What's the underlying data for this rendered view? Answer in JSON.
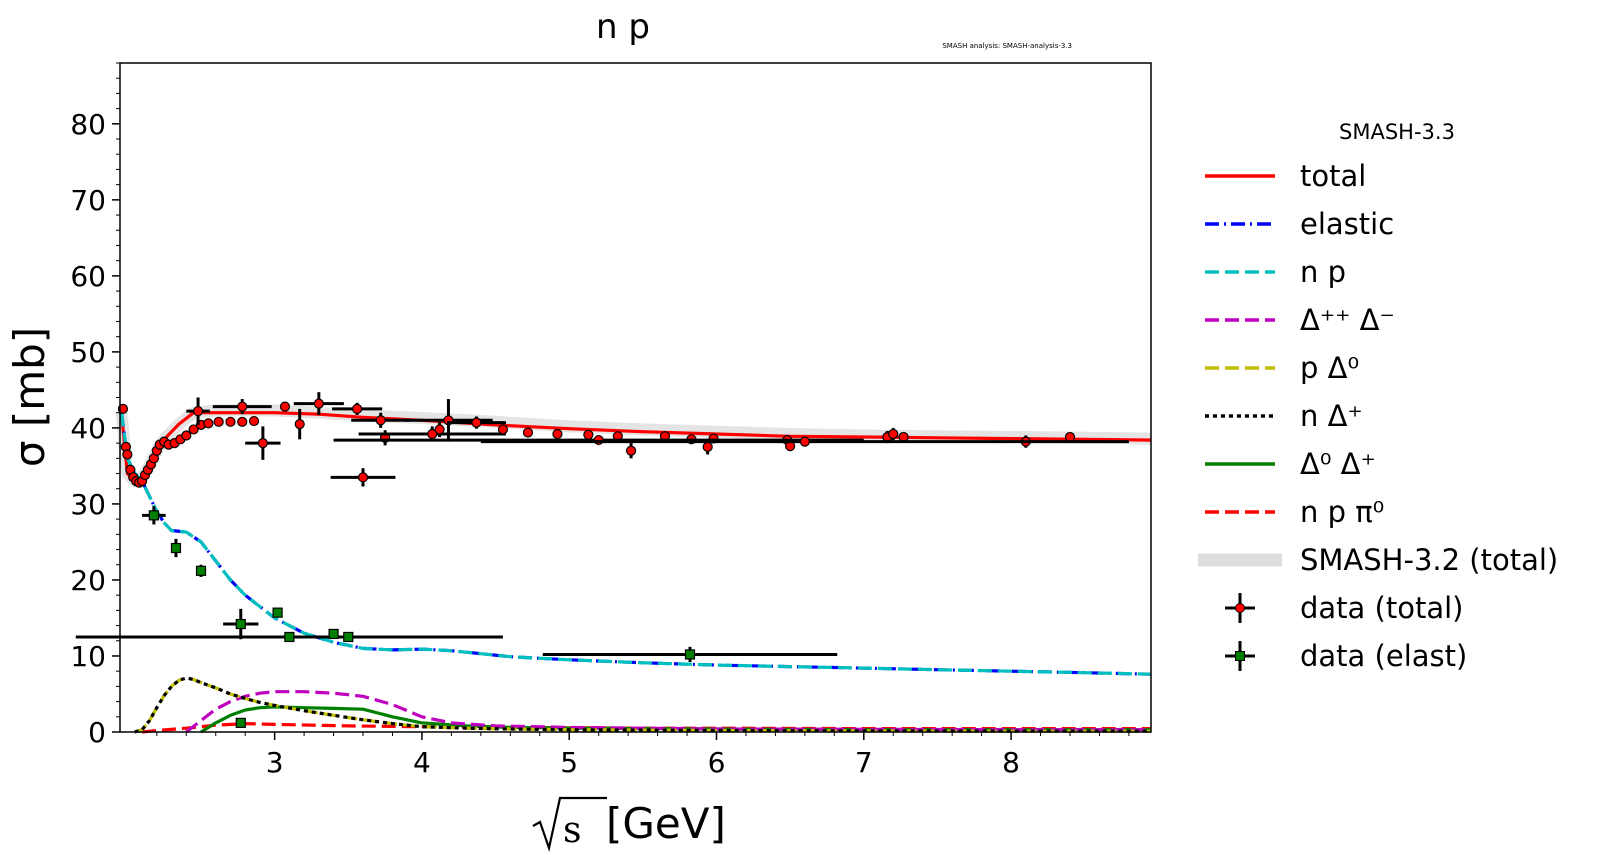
{
  "chart_data": {
    "type": "line",
    "title": "n p",
    "subtitle": "SMASH analysis: SMASH-analysis-3.3",
    "xlabel": "[GeV]",
    "xlabel_symbol": "√s",
    "ylabel": "σ [mb]",
    "xlim": [
      1.95,
      8.95
    ],
    "ylim": [
      0,
      88
    ],
    "xticks": [
      3,
      4,
      5,
      6,
      7,
      8
    ],
    "yticks": [
      0,
      10,
      20,
      30,
      40,
      50,
      60,
      70,
      80
    ],
    "grid": false,
    "legend_title": "SMASH-3.3",
    "legend_position": "right outside",
    "series": [
      {
        "name": "total",
        "color": "#ff0000",
        "style": "solid",
        "x": [
          1.96,
          1.98,
          2.0,
          2.05,
          2.1,
          2.15,
          2.2,
          2.25,
          2.35,
          2.45,
          2.6,
          2.8,
          3.0,
          3.3,
          3.6,
          4.0,
          4.5,
          5.0,
          5.5,
          6.0,
          6.5,
          7.0,
          7.5,
          8.0,
          8.5,
          8.95
        ],
        "y": [
          42,
          38,
          34,
          33,
          33.5,
          35,
          37,
          38.5,
          40.5,
          42,
          42,
          42,
          42,
          41.8,
          41.4,
          41,
          40.4,
          39.9,
          39.5,
          39.2,
          38.9,
          38.8,
          38.7,
          38.6,
          38.5,
          38.4
        ]
      },
      {
        "name": "elastic",
        "color": "#0000ff",
        "style": "dashdot",
        "x": [
          1.96,
          2.0,
          2.05,
          2.1,
          2.15,
          2.2,
          2.25,
          2.3,
          2.4,
          2.5,
          2.6,
          2.7,
          2.8,
          2.9,
          3.0,
          3.2,
          3.4,
          3.6,
          3.8,
          4.0,
          4.2,
          4.4,
          4.6,
          5.0,
          5.5,
          6.0,
          6.5,
          7.0,
          7.5,
          8.0,
          8.5,
          8.95
        ],
        "y": [
          42,
          36,
          34,
          33,
          31,
          29,
          27.5,
          26.5,
          26.3,
          25,
          22.5,
          20,
          18,
          16.5,
          15,
          13,
          11.8,
          11,
          10.8,
          10.9,
          10.7,
          10.3,
          9.9,
          9.5,
          9.1,
          8.8,
          8.6,
          8.4,
          8.2,
          8.0,
          7.8,
          7.6
        ]
      },
      {
        "name": "n p",
        "color": "#00bfbf",
        "style": "dashed",
        "x": [
          1.96,
          2.0,
          2.05,
          2.1,
          2.15,
          2.2,
          2.25,
          2.3,
          2.4,
          2.5,
          2.6,
          2.7,
          2.8,
          2.9,
          3.0,
          3.2,
          3.4,
          3.6,
          3.8,
          4.0,
          4.2,
          4.4,
          4.6,
          5.0,
          5.5,
          6.0,
          6.5,
          7.0,
          7.5,
          8.0,
          8.5,
          8.95
        ],
        "y": [
          42,
          36,
          34,
          33,
          31,
          29,
          27.5,
          26.5,
          26.3,
          25,
          22.5,
          20,
          18,
          16.5,
          15,
          13,
          11.8,
          11,
          10.8,
          10.9,
          10.7,
          10.3,
          9.9,
          9.5,
          9.1,
          8.8,
          8.6,
          8.4,
          8.2,
          8.0,
          7.8,
          7.6
        ]
      },
      {
        "name": "Δ⁺⁺ Δ⁻",
        "color": "#bf00bf",
        "style": "dashed",
        "x": [
          2.4,
          2.5,
          2.6,
          2.7,
          2.8,
          2.9,
          3.0,
          3.2,
          3.4,
          3.6,
          3.8,
          4.0,
          4.2,
          4.5,
          5.0,
          6.0,
          7.0,
          8.0,
          8.95
        ],
        "y": [
          0,
          1.5,
          3.0,
          4.0,
          4.7,
          5.1,
          5.3,
          5.3,
          5.1,
          4.7,
          3.6,
          2.0,
          1.2,
          0.8,
          0.6,
          0.4,
          0.35,
          0.3,
          0.3
        ]
      },
      {
        "name": "p Δ⁰",
        "color": "#bfbf00",
        "style": "dashed",
        "x": [
          2.05,
          2.1,
          2.15,
          2.2,
          2.25,
          2.3,
          2.35,
          2.4,
          2.45,
          2.5,
          2.6,
          2.7,
          2.8,
          2.9,
          3.0,
          3.2,
          3.4,
          3.6,
          3.8,
          4.0,
          4.3,
          4.6,
          5.0,
          6.0,
          7.0,
          8.0,
          8.95
        ],
        "y": [
          0,
          0.3,
          1.5,
          3.2,
          4.8,
          6.0,
          6.8,
          7.1,
          6.9,
          6.5,
          5.8,
          5.0,
          4.4,
          3.9,
          3.5,
          2.8,
          2.2,
          1.6,
          1.1,
          0.7,
          0.5,
          0.4,
          0.3,
          0.2,
          0.15,
          0.1,
          0.1
        ]
      },
      {
        "name": "n Δ⁺",
        "color": "#000000",
        "style": "dotted",
        "x": [
          2.05,
          2.1,
          2.15,
          2.2,
          2.25,
          2.3,
          2.35,
          2.4,
          2.45,
          2.5,
          2.6,
          2.7,
          2.8,
          2.9,
          3.0,
          3.2,
          3.4,
          3.6,
          3.8,
          4.0,
          4.3,
          4.6,
          5.0,
          6.0,
          7.0,
          8.0,
          8.95
        ],
        "y": [
          0,
          0.3,
          1.5,
          3.2,
          4.8,
          6.0,
          6.8,
          7.1,
          6.9,
          6.5,
          5.8,
          5.0,
          4.4,
          3.9,
          3.5,
          2.8,
          2.2,
          1.6,
          1.1,
          0.7,
          0.5,
          0.4,
          0.3,
          0.2,
          0.15,
          0.1,
          0.1
        ]
      },
      {
        "name": "Δ⁰ Δ⁺",
        "color": "#008000",
        "style": "solid",
        "x": [
          2.5,
          2.6,
          2.7,
          2.8,
          2.9,
          3.0,
          3.2,
          3.4,
          3.6,
          3.8,
          4.0,
          4.3,
          4.6,
          5.0,
          6.0,
          7.0,
          8.0,
          8.95
        ],
        "y": [
          0,
          1.2,
          2.2,
          2.9,
          3.2,
          3.3,
          3.2,
          3.1,
          3.0,
          2.0,
          1.2,
          0.8,
          0.6,
          0.5,
          0.4,
          0.3,
          0.3,
          0.3
        ]
      },
      {
        "name": "n p π⁰",
        "color": "#ff0000",
        "style": "dashed",
        "x": [
          2.1,
          2.2,
          2.4,
          2.6,
          2.8,
          3.0,
          3.5,
          4.0,
          4.5,
          5.0,
          5.5,
          6.0,
          7.0,
          8.0,
          8.95
        ],
        "y": [
          0,
          0.2,
          0.5,
          0.9,
          1.1,
          1.0,
          0.8,
          0.7,
          0.6,
          0.55,
          0.5,
          0.5,
          0.45,
          0.45,
          0.45
        ]
      },
      {
        "name": "SMASH-3.2 (total)",
        "color": "#dddddd",
        "style": "band",
        "x": [
          1.96,
          1.98,
          2.0,
          2.05,
          2.1,
          2.15,
          2.2,
          2.25,
          2.35,
          2.45,
          2.6,
          2.8,
          3.0,
          3.3,
          3.6,
          4.0,
          4.5,
          5.0,
          5.5,
          6.0,
          6.5,
          7.0,
          7.5,
          8.0,
          8.5,
          8.95
        ],
        "y": [
          42,
          38,
          34,
          33,
          33.5,
          35,
          37,
          38.5,
          40.5,
          42,
          42.3,
          42.3,
          42.3,
          42,
          41.6,
          41.3,
          40.8,
          40.2,
          39.8,
          39.5,
          39.2,
          39.0,
          38.9,
          38.8,
          38.7,
          38.6
        ]
      }
    ],
    "data_total": {
      "name": "data (total)",
      "color": "#ff0000",
      "points": [
        {
          "x": 1.97,
          "y": 42.5,
          "xerr": 0.0,
          "yerr": 0.5
        },
        {
          "x": 1.99,
          "y": 37.5,
          "xerr": 0.0,
          "yerr": 0.5
        },
        {
          "x": 2.0,
          "y": 36.5,
          "xerr": 0.0,
          "yerr": 0.5
        },
        {
          "x": 2.02,
          "y": 34.5,
          "xerr": 0.0,
          "yerr": 0.5
        },
        {
          "x": 2.04,
          "y": 33.5,
          "xerr": 0.0,
          "yerr": 0.5
        },
        {
          "x": 2.06,
          "y": 33.0,
          "xerr": 0.0,
          "yerr": 0.5
        },
        {
          "x": 2.08,
          "y": 32.8,
          "xerr": 0.0,
          "yerr": 0.5
        },
        {
          "x": 2.1,
          "y": 33.0,
          "xerr": 0.0,
          "yerr": 0.5
        },
        {
          "x": 2.12,
          "y": 33.8,
          "xerr": 0.0,
          "yerr": 0.5
        },
        {
          "x": 2.14,
          "y": 34.5,
          "xerr": 0.0,
          "yerr": 0.5
        },
        {
          "x": 2.16,
          "y": 35.2,
          "xerr": 0.0,
          "yerr": 0.5
        },
        {
          "x": 2.18,
          "y": 36.0,
          "xerr": 0.0,
          "yerr": 0.5
        },
        {
          "x": 2.2,
          "y": 37.0,
          "xerr": 0.0,
          "yerr": 0.5
        },
        {
          "x": 2.22,
          "y": 37.8,
          "xerr": 0.0,
          "yerr": 0.5
        },
        {
          "x": 2.25,
          "y": 38.2,
          "xerr": 0.0,
          "yerr": 0.5
        },
        {
          "x": 2.28,
          "y": 37.8,
          "xerr": 0.0,
          "yerr": 0.5
        },
        {
          "x": 2.32,
          "y": 38.0,
          "xerr": 0.0,
          "yerr": 0.5
        },
        {
          "x": 2.36,
          "y": 38.5,
          "xerr": 0.0,
          "yerr": 0.5
        },
        {
          "x": 2.4,
          "y": 39.0,
          "xerr": 0.0,
          "yerr": 0.5
        },
        {
          "x": 2.45,
          "y": 39.8,
          "xerr": 0.0,
          "yerr": 0.5
        },
        {
          "x": 2.5,
          "y": 40.4,
          "xerr": 0.0,
          "yerr": 0.5
        },
        {
          "x": 2.55,
          "y": 40.6,
          "xerr": 0.0,
          "yerr": 0.5
        },
        {
          "x": 2.62,
          "y": 40.8,
          "xerr": 0.0,
          "yerr": 0.5
        },
        {
          "x": 2.7,
          "y": 40.8,
          "xerr": 0.0,
          "yerr": 0.5
        },
        {
          "x": 2.78,
          "y": 40.8,
          "xerr": 0.0,
          "yerr": 0.5
        },
        {
          "x": 2.86,
          "y": 40.9,
          "xerr": 0.0,
          "yerr": 0.5
        },
        {
          "x": 2.48,
          "y": 42.2,
          "xerr": 0.08,
          "yerr": 1.8
        },
        {
          "x": 2.78,
          "y": 42.8,
          "xerr": 0.2,
          "yerr": 1.0
        },
        {
          "x": 2.92,
          "y": 38.0,
          "xerr": 0.12,
          "yerr": 2.2
        },
        {
          "x": 3.07,
          "y": 42.8,
          "xerr": 0.0,
          "yerr": 0.5
        },
        {
          "x": 3.17,
          "y": 40.5,
          "xerr": 0.0,
          "yerr": 2.0
        },
        {
          "x": 3.3,
          "y": 43.2,
          "xerr": 0.17,
          "yerr": 1.5
        },
        {
          "x": 3.56,
          "y": 42.5,
          "xerr": 0.17,
          "yerr": 0.8
        },
        {
          "x": 3.6,
          "y": 33.5,
          "xerr": 0.22,
          "yerr": 1.2
        },
        {
          "x": 3.72,
          "y": 41.0,
          "xerr": 0.2,
          "yerr": 1.0
        },
        {
          "x": 3.75,
          "y": 38.7,
          "xerr": 0.0,
          "yerr": 1.0
        },
        {
          "x": 4.07,
          "y": 39.2,
          "xerr": 0.5,
          "yerr": 1.0
        },
        {
          "x": 4.12,
          "y": 39.8,
          "xerr": 0.0,
          "yerr": 1.0
        },
        {
          "x": 4.18,
          "y": 41.0,
          "xerr": 0.3,
          "yerr": 2.8
        },
        {
          "x": 4.37,
          "y": 40.7,
          "xerr": 0.2,
          "yerr": 0.8
        },
        {
          "x": 4.55,
          "y": 39.8,
          "xerr": 0.0,
          "yerr": 0.5
        },
        {
          "x": 4.72,
          "y": 39.4,
          "xerr": 0.0,
          "yerr": 0.5
        },
        {
          "x": 4.92,
          "y": 39.2,
          "xerr": 0.0,
          "yerr": 0.5
        },
        {
          "x": 5.13,
          "y": 39.1,
          "xerr": 0.0,
          "yerr": 0.5
        },
        {
          "x": 5.33,
          "y": 38.9,
          "xerr": 0.0,
          "yerr": 0.5
        },
        {
          "x": 5.42,
          "y": 37.0,
          "xerr": 0.0,
          "yerr": 1.0
        },
        {
          "x": 5.65,
          "y": 38.9,
          "xerr": 0.0,
          "yerr": 0.5
        },
        {
          "x": 5.83,
          "y": 38.5,
          "xerr": 0.0,
          "yerr": 0.5
        },
        {
          "x": 5.94,
          "y": 37.5,
          "xerr": 0.0,
          "yerr": 1.0
        },
        {
          "x": 5.98,
          "y": 38.6,
          "xerr": 0.0,
          "yerr": 0.5
        },
        {
          "x": 6.48,
          "y": 38.4,
          "xerr": 0.0,
          "yerr": 0.5
        },
        {
          "x": 6.5,
          "y": 37.6,
          "xerr": 0.0,
          "yerr": 0.5
        },
        {
          "x": 7.16,
          "y": 38.8,
          "xerr": 0.0,
          "yerr": 0.8
        },
        {
          "x": 7.2,
          "y": 39.2,
          "xerr": 0.0,
          "yerr": 0.8
        },
        {
          "x": 7.27,
          "y": 38.8,
          "xerr": 0.0,
          "yerr": 0.5
        },
        {
          "x": 8.1,
          "y": 38.2,
          "xerr": 0.0,
          "yerr": 0.8
        },
        {
          "x": 8.4,
          "y": 38.8,
          "xerr": 0.0,
          "yerr": 0.5
        },
        {
          "x": 5.2,
          "y": 38.4,
          "xerr": 1.8,
          "yerr": 0.0
        },
        {
          "x": 6.6,
          "y": 38.2,
          "xerr": 2.2,
          "yerr": 0.0
        }
      ]
    },
    "data_elast": {
      "name": "data (elast)",
      "color": "#008000",
      "points": [
        {
          "x": 2.18,
          "y": 28.5,
          "xerr": 0.08,
          "yerr": 1.2
        },
        {
          "x": 2.33,
          "y": 24.2,
          "xerr": 0.0,
          "yerr": 1.2
        },
        {
          "x": 2.5,
          "y": 21.2,
          "xerr": 0.0,
          "yerr": 0.8
        },
        {
          "x": 2.77,
          "y": 14.2,
          "xerr": 0.12,
          "yerr": 2.0
        },
        {
          "x": 3.02,
          "y": 15.7,
          "xerr": 0.0,
          "yerr": 0.5
        },
        {
          "x": 3.1,
          "y": 12.5,
          "xerr": 1.45,
          "yerr": 0.0
        },
        {
          "x": 3.4,
          "y": 12.9,
          "xerr": 0.0,
          "yerr": 0.5
        },
        {
          "x": 3.5,
          "y": 12.5,
          "xerr": 0.0,
          "yerr": 0.5
        },
        {
          "x": 5.82,
          "y": 10.2,
          "xerr": 1.0,
          "yerr": 1.0
        },
        {
          "x": 2.77,
          "y": 1.2,
          "xerr": 0.0,
          "yerr": 0.6
        }
      ]
    }
  }
}
